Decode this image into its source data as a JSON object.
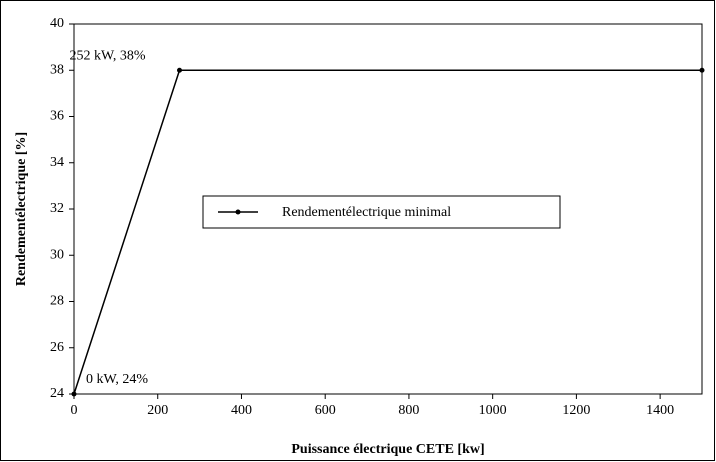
{
  "chart_data": {
    "type": "line",
    "x": [
      0,
      252,
      1500
    ],
    "series": [
      {
        "name": "Rendementélectrique minimal",
        "color": "#000000",
        "values": [
          24,
          38,
          38
        ]
      }
    ],
    "xlabel": "Puissance électrique CETE [kw]",
    "ylabel": "Rendementélectrique [%]",
    "xlim": [
      0,
      1500
    ],
    "xticks": [
      0,
      200,
      400,
      600,
      800,
      1000,
      1200,
      1400
    ],
    "ylim": [
      24,
      40
    ],
    "yticks": [
      24,
      26,
      28,
      30,
      32,
      34,
      36,
      38,
      40
    ],
    "annotations": [
      "0 kW, 24%",
      "252 kW, 38%"
    ],
    "grid": false
  }
}
